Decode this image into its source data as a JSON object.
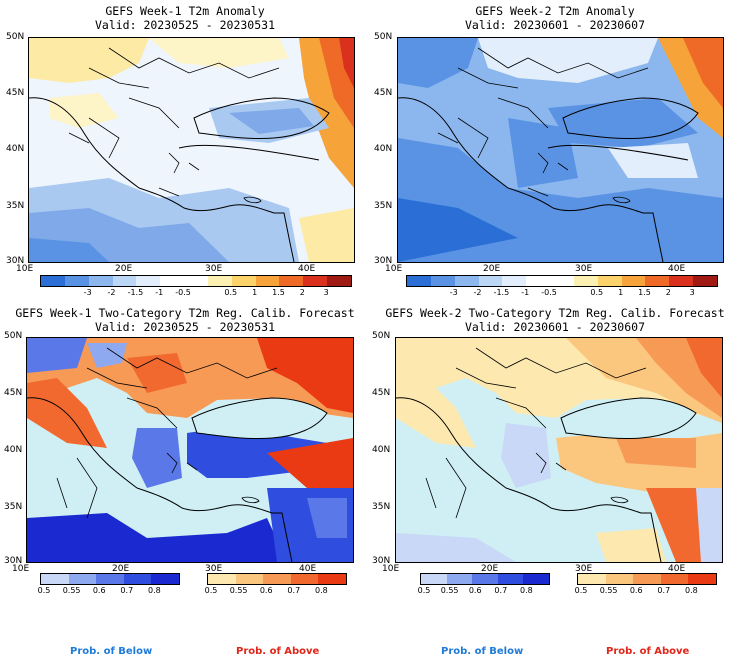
{
  "panels": [
    {
      "id": "w1-anom",
      "title": "GEFS Week-1 T2m Anomaly",
      "valid": "Valid: 20230525 - 20230531",
      "lat_labels": [
        "50N",
        "45N",
        "40N",
        "35N",
        "30N"
      ],
      "lon_labels": [
        "10E",
        "20E",
        "30E",
        "40E"
      ],
      "colorbar": {
        "colors": [
          "#2b6fd6",
          "#5a93e3",
          "#8bb6ee",
          "#bcd6f5",
          "#e2eefb",
          "#ffffff",
          "#ffffff",
          "#fdf0b3",
          "#fcd26a",
          "#f6a33a",
          "#ef6a26",
          "#d9311e",
          "#9e1a12"
        ],
        "labels": [
          "-3",
          "-2",
          "-1.5",
          "-1",
          "-0.5",
          "0.5",
          "1",
          "1.5",
          "2",
          "3"
        ]
      }
    },
    {
      "id": "w2-anom",
      "title": "GEFS Week-2 T2m Anomaly",
      "valid": "Valid: 20230601 - 20230607",
      "lat_labels": [
        "50N",
        "45N",
        "40N",
        "35N",
        "30N"
      ],
      "lon_labels": [
        "10E",
        "20E",
        "30E",
        "40E"
      ],
      "colorbar": {
        "colors": [
          "#2b6fd6",
          "#5a93e3",
          "#8bb6ee",
          "#bcd6f5",
          "#e2eefb",
          "#ffffff",
          "#ffffff",
          "#fdf0b3",
          "#fcd26a",
          "#f6a33a",
          "#ef6a26",
          "#d9311e",
          "#9e1a12"
        ],
        "labels": [
          "-3",
          "-2",
          "-1.5",
          "-1",
          "-0.5",
          "0.5",
          "1",
          "1.5",
          "2",
          "3"
        ]
      }
    },
    {
      "id": "w1-prob",
      "title": "GEFS Week-1 Two-Category T2m Reg. Calib. Forecast",
      "valid": "Valid: 20230525 - 20230531",
      "lat_labels": [
        "50N",
        "45N",
        "40N",
        "35N",
        "30N"
      ],
      "lon_labels": [
        "10E",
        "20E",
        "30E",
        "40E"
      ],
      "below_colors": [
        "#c9d8f6",
        "#8fa9f0",
        "#5b78e8",
        "#2f4ddf",
        "#1a2ad0"
      ],
      "above_colors": [
        "#fde9b0",
        "#fbc67e",
        "#f79a55",
        "#f2692f",
        "#ea3a14"
      ],
      "prob_labels": [
        "0.5",
        "0.55",
        "0.6",
        "0.7",
        "0.8"
      ]
    },
    {
      "id": "w2-prob",
      "title": "GEFS Week-2 Two-Category T2m Reg. Calib. Forecast",
      "valid": "Valid: 20230601 - 20230607",
      "lat_labels": [
        "50N",
        "45N",
        "40N",
        "35N",
        "30N"
      ],
      "lon_labels": [
        "10E",
        "20E",
        "30E",
        "40E"
      ],
      "below_colors": [
        "#c9d8f6",
        "#8fa9f0",
        "#5b78e8",
        "#2f4ddf",
        "#1a2ad0"
      ],
      "above_colors": [
        "#fde9b0",
        "#fbc67e",
        "#f79a55",
        "#f2692f",
        "#ea3a14"
      ],
      "prob_labels": [
        "0.5",
        "0.55",
        "0.6",
        "0.7",
        "0.8"
      ]
    }
  ],
  "legend": {
    "below": "Prob. of Below",
    "above": "Prob. of Above",
    "below_color": "#1f7ad8",
    "above_color": "#e0261a"
  }
}
